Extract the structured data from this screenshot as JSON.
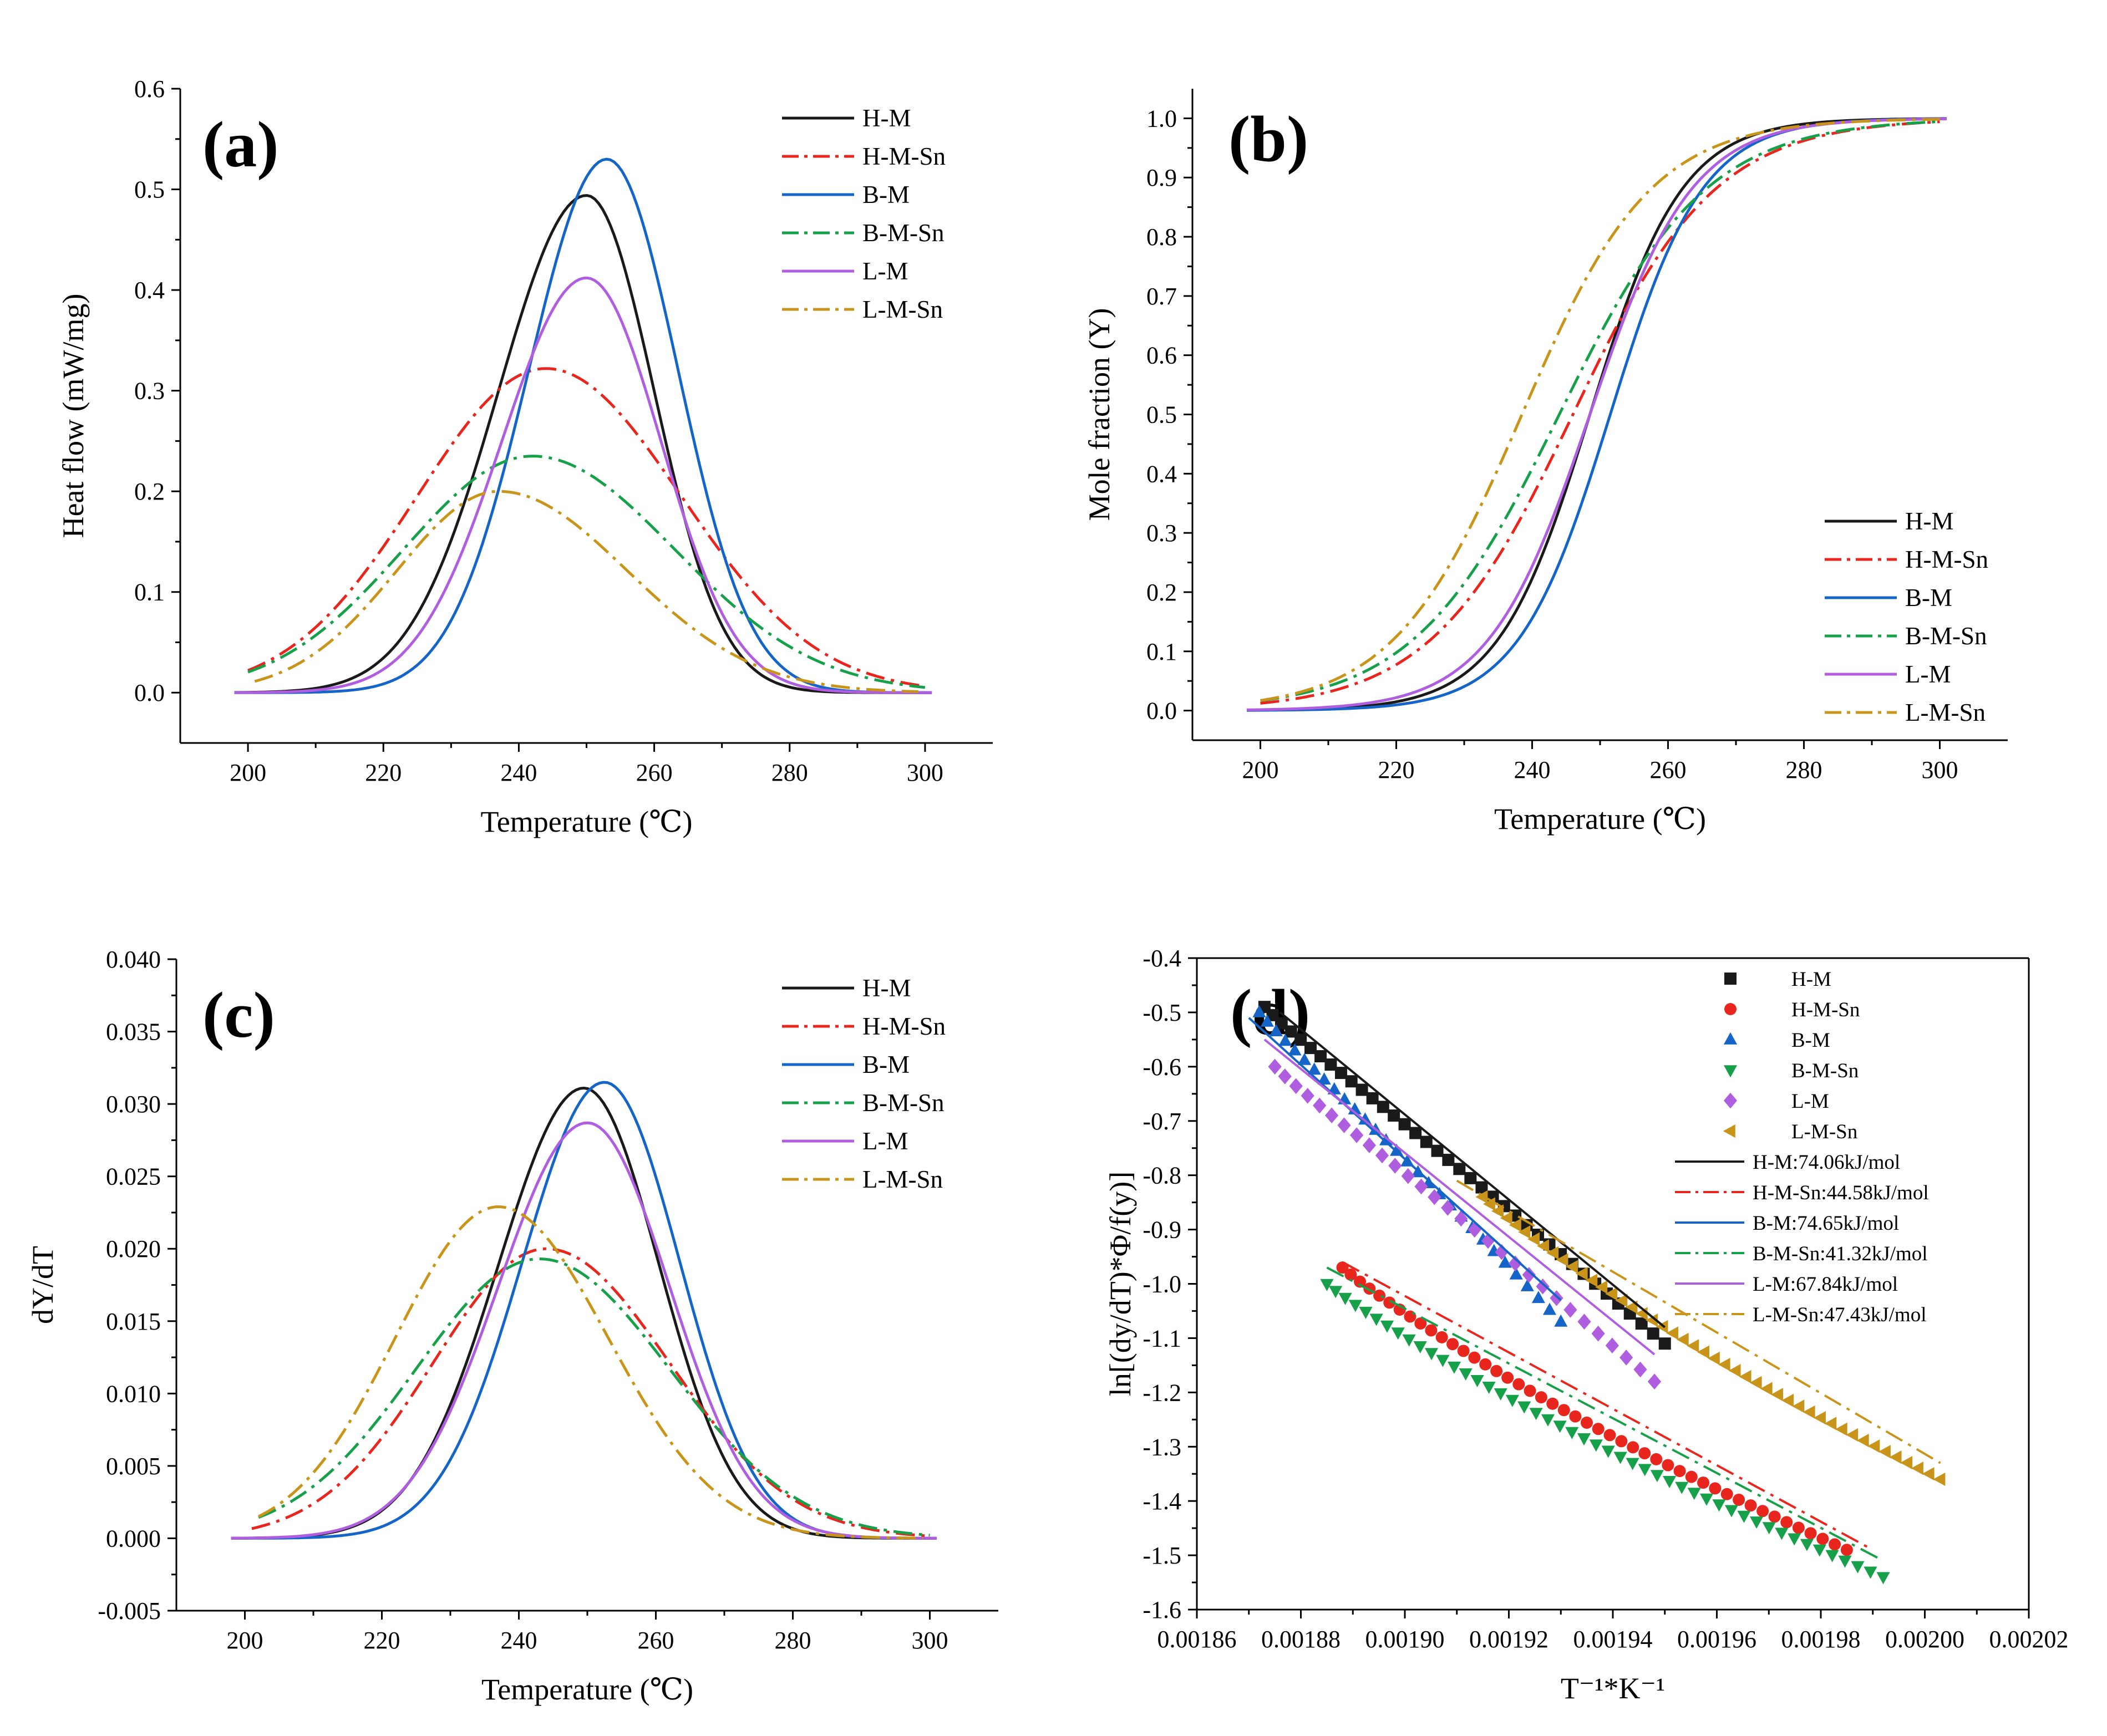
{
  "colors": {
    "H-M": "#1a1a1a",
    "H-M-Sn": "#e8261d",
    "B-M": "#1565c8",
    "B-M-Sn": "#17a04a",
    "L-M": "#b05ee0",
    "L-M-Sn": "#c8951a"
  },
  "chart_data": [
    {
      "panel": "(a)",
      "type": "line",
      "xlabel": "Temperature (℃)",
      "ylabel": "Heat flow (mW/mg)",
      "xlim": [
        190,
        310
      ],
      "ylim": [
        -0.05,
        0.6
      ],
      "xticks": [
        200,
        220,
        240,
        260,
        280,
        300
      ],
      "yticks": [
        0.0,
        0.1,
        0.2,
        0.3,
        0.4,
        0.5,
        0.6
      ],
      "ytick_labels": [
        "0.0",
        "0.1",
        "0.2",
        "0.3",
        "0.4",
        "0.5",
        "0.6"
      ],
      "legend_position": "top-right",
      "series": [
        {
          "name": "H-M",
          "style": "solid",
          "x_range": [
            198,
            301
          ],
          "peak_x": 250,
          "peak_y": 0.494,
          "sigma_left": 13.0,
          "sigma_right": 10.0,
          "base": 0.0
        },
        {
          "name": "H-M-Sn",
          "style": "dashdot",
          "x_range": [
            200,
            300
          ],
          "peak_x": 244,
          "peak_y": 0.322,
          "sigma_left": 19.0,
          "sigma_right": 20.0,
          "base": 0.0
        },
        {
          "name": "B-M",
          "style": "solid",
          "x_range": [
            198,
            301
          ],
          "peak_x": 253,
          "peak_y": 0.53,
          "sigma_left": 11.5,
          "sigma_right": 10.5,
          "base": 0.0
        },
        {
          "name": "B-M-Sn",
          "style": "dashdot",
          "x_range": [
            200,
            300
          ],
          "peak_x": 242,
          "peak_y": 0.235,
          "sigma_left": 19.0,
          "sigma_right": 21.0,
          "base": 0.0
        },
        {
          "name": "L-M",
          "style": "solid",
          "x_range": [
            198,
            301
          ],
          "peak_x": 250,
          "peak_y": 0.412,
          "sigma_left": 12.5,
          "sigma_right": 11.0,
          "base": 0.0
        },
        {
          "name": "L-M-Sn",
          "style": "dashdot",
          "x_range": [
            201,
            299
          ],
          "peak_x": 237,
          "peak_y": 0.2,
          "sigma_left": 15.0,
          "sigma_right": 19.0,
          "base": 0.0
        }
      ]
    },
    {
      "panel": "(b)",
      "type": "line",
      "xlabel": "Temperature (℃)",
      "ylabel": "Mole fraction (Y)",
      "xlim": [
        190,
        310
      ],
      "ylim": [
        -0.05,
        1.05
      ],
      "xticks": [
        200,
        220,
        240,
        260,
        280,
        300
      ],
      "yticks": [
        0.0,
        0.1,
        0.2,
        0.3,
        0.4,
        0.5,
        0.6,
        0.7,
        0.8,
        0.9,
        1.0
      ],
      "ytick_labels": [
        "0.0",
        "0.1",
        "0.2",
        "0.3",
        "0.4",
        "0.5",
        "0.6",
        "0.7",
        "0.8",
        "0.9",
        "1.0"
      ],
      "legend_position": "bottom-right",
      "series": [
        {
          "name": "H-M",
          "style": "solid",
          "x_range": [
            198,
            301
          ],
          "mid_x": 248.5,
          "scale": 6.8
        },
        {
          "name": "H-M-Sn",
          "style": "dashdot",
          "x_range": [
            200,
            300
          ],
          "mid_x": 246,
          "scale": 10.5
        },
        {
          "name": "B-M",
          "style": "solid",
          "x_range": [
            198,
            301
          ],
          "mid_x": 251.5,
          "scale": 6.8
        },
        {
          "name": "B-M-Sn",
          "style": "dashdot",
          "x_range": [
            200,
            300
          ],
          "mid_x": 244,
          "scale": 10.8
        },
        {
          "name": "L-M",
          "style": "solid",
          "x_range": [
            198,
            301
          ],
          "mid_x": 248.5,
          "scale": 7.5
        },
        {
          "name": "L-M-Sn",
          "style": "dashdot",
          "x_range": [
            200,
            300
          ],
          "mid_x": 238.5,
          "scale": 9.5
        }
      ]
    },
    {
      "panel": "(c)",
      "type": "line",
      "xlabel": "Temperature (℃)",
      "ylabel": "dY/dT",
      "xlim": [
        190,
        310
      ],
      "ylim": [
        -0.005,
        0.04
      ],
      "xticks": [
        200,
        220,
        240,
        260,
        280,
        300
      ],
      "yticks": [
        -0.005,
        0.0,
        0.005,
        0.01,
        0.015,
        0.02,
        0.025,
        0.03,
        0.035,
        0.04
      ],
      "ytick_labels": [
        "-0.005",
        "0.000",
        "0.005",
        "0.010",
        "0.015",
        "0.020",
        "0.025",
        "0.030",
        "0.035",
        "0.040"
      ],
      "legend_position": "top-right",
      "series": [
        {
          "name": "H-M",
          "style": "solid",
          "x_range": [
            198,
            301
          ],
          "peak_x": 249.5,
          "peak_y": 0.0311,
          "sigma_left": 12.5,
          "sigma_right": 11.0,
          "base": 0.0
        },
        {
          "name": "H-M-Sn",
          "style": "dashdot",
          "x_range": [
            201,
            300
          ],
          "peak_x": 244,
          "peak_y": 0.02,
          "sigma_left": 16.5,
          "sigma_right": 18.0,
          "base": 0.0
        },
        {
          "name": "B-M",
          "style": "solid",
          "x_range": [
            198,
            301
          ],
          "peak_x": 252.5,
          "peak_y": 0.0315,
          "sigma_left": 12.0,
          "sigma_right": 11.0,
          "base": 0.0
        },
        {
          "name": "B-M-Sn",
          "style": "dashdot",
          "x_range": [
            202,
            300
          ],
          "peak_x": 243,
          "peak_y": 0.0193,
          "sigma_left": 18.0,
          "sigma_right": 19.0,
          "base": 0.0
        },
        {
          "name": "L-M",
          "style": "solid",
          "x_range": [
            198,
            301
          ],
          "peak_x": 250,
          "peak_y": 0.0287,
          "sigma_left": 13.0,
          "sigma_right": 12.0,
          "base": 0.0
        },
        {
          "name": "L-M-Sn",
          "style": "dashdot",
          "x_range": [
            202,
            299
          ],
          "peak_x": 237,
          "peak_y": 0.0229,
          "sigma_left": 15.0,
          "sigma_right": 16.0,
          "base": 0.0
        }
      ]
    },
    {
      "panel": "(d)",
      "type": "scatter",
      "xlabel": "T⁻¹*K⁻¹",
      "ylabel": "ln[(dy/dT)*Φ/f(y)]",
      "xlim": [
        0.00186,
        0.00202
      ],
      "ylim": [
        -1.6,
        -0.4
      ],
      "xticks": [
        0.00186,
        0.00188,
        0.0019,
        0.00192,
        0.00194,
        0.00196,
        0.00198,
        0.002,
        0.00202
      ],
      "xtick_labels": [
        "0.00186",
        "0.00188",
        "0.00190",
        "0.00192",
        "0.00194",
        "0.00196",
        "0.00198",
        "0.00200",
        "0.00202"
      ],
      "yticks": [
        -0.4,
        -0.5,
        -0.6,
        -0.7,
        -0.8,
        -0.9,
        -1.0,
        -1.1,
        -1.2,
        -1.3,
        -1.4,
        -1.5,
        -1.6
      ],
      "ytick_labels": [
        "-0.4",
        "-0.5",
        "-0.6",
        "-0.7",
        "-0.8",
        "-0.9",
        "-1.0",
        "-1.1",
        "-1.2",
        "-1.3",
        "-1.4",
        "-1.5",
        "-1.6"
      ],
      "legend_position": "top-right",
      "scatter_series": [
        {
          "name": "H-M",
          "marker": "square",
          "color_key": "H-M",
          "x_start": 0.001873,
          "x_end": 0.00195,
          "y_start": -0.49,
          "y_end": -1.11,
          "n": 38
        },
        {
          "name": "H-M-Sn",
          "marker": "circle",
          "color_key": "H-M-Sn",
          "x_start": 0.001888,
          "x_end": 0.001985,
          "y_start": -0.97,
          "y_end": -1.49,
          "n": 46
        },
        {
          "name": "B-M",
          "marker": "triangle-up",
          "color_key": "B-M",
          "x_start": 0.001872,
          "x_end": 0.00193,
          "y_start": -0.5,
          "y_end": -1.07,
          "n": 30
        },
        {
          "name": "B-M-Sn",
          "marker": "triangle-down",
          "color_key": "B-M-Sn",
          "x_start": 0.001885,
          "x_end": 0.001992,
          "y_start": -1.0,
          "y_end": -1.54,
          "n": 48
        },
        {
          "name": "L-M",
          "marker": "diamond",
          "color_key": "L-M",
          "x_start": 0.001875,
          "x_end": 0.001948,
          "y_start": -0.6,
          "y_end": -1.18,
          "n": 30
        },
        {
          "name": "L-M-Sn",
          "marker": "triangle-left",
          "color_key": "L-M-Sn",
          "x_start": 0.001915,
          "x_end": 0.002003,
          "y_start": -0.84,
          "y_end": -1.36,
          "n": 46
        }
      ],
      "fit_lines": [
        {
          "name": "H-M:74.06kJ/mol",
          "style": "solid",
          "color_key": "H-M",
          "x": [
            0.001876,
            0.00195
          ],
          "y": [
            -0.5,
            -1.08
          ]
        },
        {
          "name": "H-M-Sn:44.58kJ/mol",
          "style": "dashdot",
          "color_key": "H-M-Sn",
          "x": [
            0.001888,
            0.00199
          ],
          "y": [
            -0.96,
            -1.49
          ]
        },
        {
          "name": "B-M:74.65kJ/mol",
          "style": "solid",
          "color_key": "B-M",
          "x": [
            0.00187,
            0.00193
          ],
          "y": [
            -0.51,
            -1.03
          ]
        },
        {
          "name": "B-M-Sn:41.32kJ/mol",
          "style": "dashdot",
          "color_key": "B-M-Sn",
          "x": [
            0.001885,
            0.001992
          ],
          "y": [
            -0.97,
            -1.51
          ]
        },
        {
          "name": "L-M:67.84kJ/mol",
          "style": "solid",
          "color_key": "L-M",
          "x": [
            0.001873,
            0.001948
          ],
          "y": [
            -0.55,
            -1.13
          ]
        },
        {
          "name": "L-M-Sn:47.43kJ/mol",
          "style": "dashdot",
          "color_key": "L-M-Sn",
          "x": [
            0.00191,
            0.002003
          ],
          "y": [
            -0.81,
            -1.33
          ]
        }
      ]
    }
  ]
}
